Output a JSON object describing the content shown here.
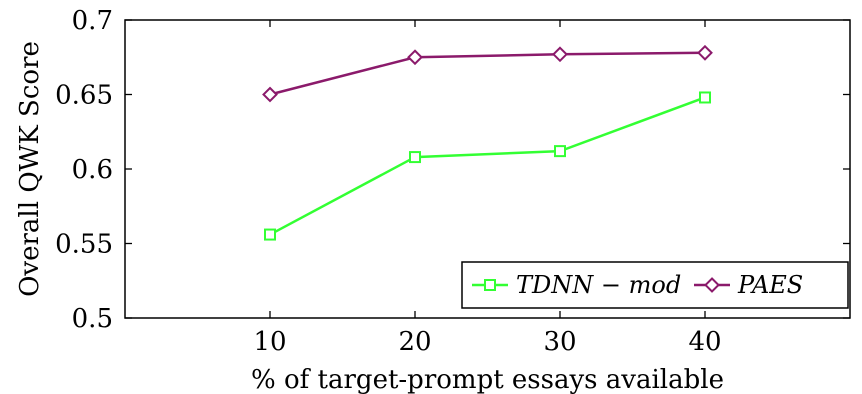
{
  "chart_data": {
    "type": "line",
    "title": "",
    "xlabel": "% of target-prompt essays available",
    "ylabel": "Overall QWK Score",
    "x": [
      10,
      20,
      30,
      40
    ],
    "xlim": [
      0,
      50
    ],
    "ylim": [
      0.5,
      0.7
    ],
    "x_ticks": [
      "10",
      "20",
      "30",
      "40"
    ],
    "y_ticks": [
      "0.5",
      "0.55",
      "0.6",
      "0.65",
      "0.7"
    ],
    "grid": false,
    "legend_position": "bottom-right",
    "series": [
      {
        "name": "TDNN − mod",
        "values": [
          0.556,
          0.608,
          0.612,
          0.648
        ],
        "color": "#33ff33",
        "marker": "square"
      },
      {
        "name": "PAES",
        "values": [
          0.65,
          0.675,
          0.677,
          0.678
        ],
        "color": "#8b1a6b",
        "marker": "diamond"
      }
    ]
  }
}
